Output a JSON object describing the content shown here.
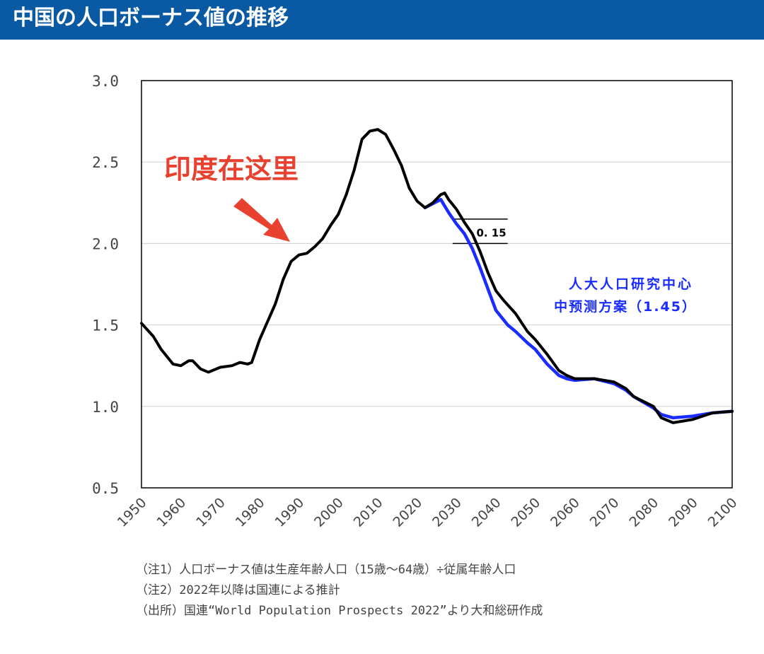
{
  "header": {
    "title": "中国の人口ボーナス値の推移"
  },
  "chart_data": {
    "type": "line",
    "title": "",
    "xlabel": "",
    "ylabel": "",
    "xlim": [
      1950,
      2100
    ],
    "ylim": [
      0.5,
      3.0
    ],
    "x_ticks": [
      "1950",
      "1960",
      "1970",
      "1980",
      "1990",
      "2000",
      "2010",
      "2020",
      "2030",
      "2040",
      "2050",
      "2060",
      "2070",
      "2080",
      "2090",
      "2100"
    ],
    "y_ticks": [
      "0.5",
      "1.0",
      "1.5",
      "2.0",
      "2.5",
      "3.0"
    ],
    "grid": "horizontal",
    "colors": {
      "un": "#000000",
      "renmin": "#1a2cff",
      "annotation": "#e8412f"
    },
    "series": [
      {
        "key": "un",
        "color": "#000000",
        "points": [
          [
            1950,
            1.51
          ],
          [
            1953,
            1.43
          ],
          [
            1955,
            1.35
          ],
          [
            1958,
            1.26
          ],
          [
            1960,
            1.25
          ],
          [
            1962,
            1.28
          ],
          [
            1963,
            1.28
          ],
          [
            1965,
            1.23
          ],
          [
            1967,
            1.21
          ],
          [
            1970,
            1.24
          ],
          [
            1973,
            1.25
          ],
          [
            1975,
            1.27
          ],
          [
            1977,
            1.26
          ],
          [
            1978,
            1.27
          ],
          [
            1980,
            1.41
          ],
          [
            1982,
            1.52
          ],
          [
            1984,
            1.63
          ],
          [
            1986,
            1.78
          ],
          [
            1988,
            1.89
          ],
          [
            1990,
            1.93
          ],
          [
            1992,
            1.94
          ],
          [
            1994,
            1.98
          ],
          [
            1996,
            2.03
          ],
          [
            1998,
            2.11
          ],
          [
            2000,
            2.18
          ],
          [
            2002,
            2.3
          ],
          [
            2004,
            2.45
          ],
          [
            2006,
            2.64
          ],
          [
            2008,
            2.69
          ],
          [
            2010,
            2.7
          ],
          [
            2012,
            2.67
          ],
          [
            2014,
            2.58
          ],
          [
            2016,
            2.48
          ],
          [
            2018,
            2.34
          ],
          [
            2020,
            2.26
          ],
          [
            2022,
            2.22
          ],
          [
            2024,
            2.25
          ],
          [
            2026,
            2.3
          ],
          [
            2027,
            2.31
          ],
          [
            2028,
            2.27
          ],
          [
            2030,
            2.21
          ],
          [
            2032,
            2.13
          ],
          [
            2034,
            2.06
          ],
          [
            2036,
            1.95
          ],
          [
            2038,
            1.82
          ],
          [
            2040,
            1.71
          ],
          [
            2042,
            1.65
          ],
          [
            2045,
            1.57
          ],
          [
            2048,
            1.46
          ],
          [
            2050,
            1.41
          ],
          [
            2053,
            1.32
          ],
          [
            2056,
            1.22
          ],
          [
            2058,
            1.19
          ],
          [
            2060,
            1.17
          ],
          [
            2065,
            1.17
          ],
          [
            2070,
            1.15
          ],
          [
            2073,
            1.11
          ],
          [
            2075,
            1.06
          ],
          [
            2080,
            1.0
          ],
          [
            2082,
            0.93
          ],
          [
            2085,
            0.9
          ],
          [
            2090,
            0.92
          ],
          [
            2095,
            0.96
          ],
          [
            2100,
            0.97
          ]
        ]
      },
      {
        "key": "renmin",
        "color": "#1a2cff",
        "points": [
          [
            2022,
            2.22
          ],
          [
            2026,
            2.27
          ],
          [
            2028,
            2.19
          ],
          [
            2030,
            2.12
          ],
          [
            2032,
            2.06
          ],
          [
            2034,
            1.97
          ],
          [
            2036,
            1.85
          ],
          [
            2038,
            1.72
          ],
          [
            2040,
            1.59
          ],
          [
            2043,
            1.5
          ],
          [
            2045,
            1.46
          ],
          [
            2048,
            1.39
          ],
          [
            2050,
            1.35
          ],
          [
            2053,
            1.26
          ],
          [
            2056,
            1.19
          ],
          [
            2058,
            1.17
          ],
          [
            2060,
            1.16
          ],
          [
            2065,
            1.17
          ],
          [
            2070,
            1.14
          ],
          [
            2073,
            1.1
          ],
          [
            2075,
            1.06
          ],
          [
            2080,
            0.99
          ],
          [
            2082,
            0.95
          ],
          [
            2085,
            0.93
          ],
          [
            2090,
            0.94
          ],
          [
            2095,
            0.96
          ],
          [
            2100,
            0.97
          ]
        ]
      }
    ],
    "annotations": {
      "india": "印度在这里",
      "gap_label": "0. 15",
      "gap_range": [
        2.0,
        2.15
      ],
      "renmin_line1": "人大人口研究中心",
      "renmin_line2": "中预测方案（1.45）"
    }
  },
  "notes": [
    "（注1）人口ボーナス値は生産年齢人口（15歳～64歳）÷従属年齢人口",
    "（注2）2022年以降は国連による推計",
    "（出所）国連“World Population Prospects 2022”より大和総研作成"
  ]
}
